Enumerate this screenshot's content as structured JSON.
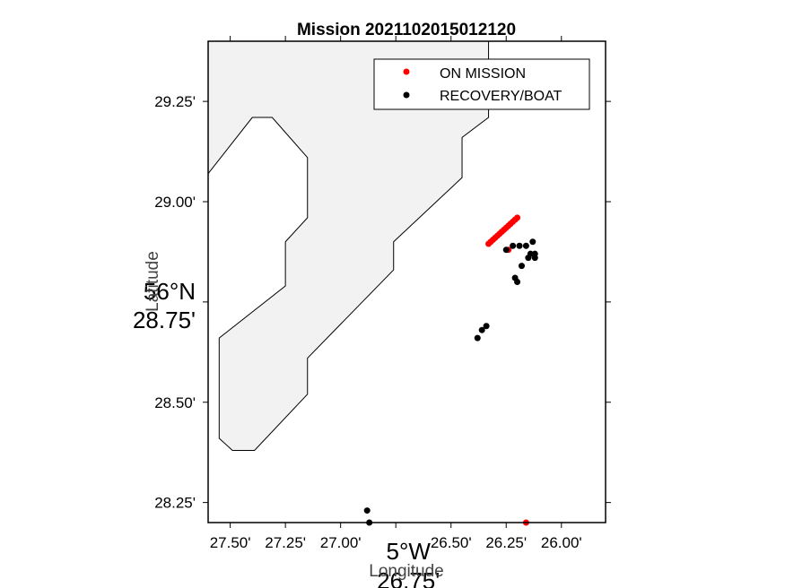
{
  "chart_data": {
    "type": "scatter",
    "title": "Mission 2021102015012120",
    "xlabel": "Longitude",
    "ylabel": "Latitude",
    "xlim": [
      -27.6,
      -25.8
    ],
    "ylim": [
      28.2,
      29.4
    ],
    "x_ticks": [
      {
        "value": -27.5,
        "label": "27.50'"
      },
      {
        "value": -27.25,
        "label": "27.25'"
      },
      {
        "value": -27.0,
        "label": "27.00'"
      },
      {
        "value": -26.5,
        "label": "26.50'"
      },
      {
        "value": -26.25,
        "label": "26.25'"
      },
      {
        "value": -26.0,
        "label": "26.00'"
      }
    ],
    "x_major_tick": {
      "value": -26.75,
      "label_top": "5°W",
      "label_bottom": "26.75'"
    },
    "y_ticks": [
      {
        "value": 29.25,
        "label": "29.25'"
      },
      {
        "value": 29.0,
        "label": "29.00'"
      },
      {
        "value": 28.5,
        "label": "28.50'"
      },
      {
        "value": 28.25,
        "label": "28.25'"
      }
    ],
    "y_major_tick": {
      "value": 28.75,
      "label_top": "56°N",
      "label_bottom": "28.75'"
    },
    "land_polygon": [
      [
        -27.6,
        29.07
      ],
      [
        -27.4,
        29.21
      ],
      [
        -27.31,
        29.21
      ],
      [
        -27.15,
        29.11
      ],
      [
        -27.15,
        28.96
      ],
      [
        -27.25,
        28.9
      ],
      [
        -27.25,
        28.79
      ],
      [
        -27.55,
        28.66
      ],
      [
        -27.55,
        28.41
      ],
      [
        -27.49,
        28.38
      ],
      [
        -27.39,
        28.38
      ],
      [
        -27.15,
        28.52
      ],
      [
        -27.15,
        28.61
      ],
      [
        -26.76,
        28.83
      ],
      [
        -26.76,
        28.9
      ],
      [
        -26.45,
        29.06
      ],
      [
        -26.45,
        29.16
      ],
      [
        -26.33,
        29.21
      ],
      [
        -26.33,
        29.4
      ],
      [
        -27.6,
        29.4
      ]
    ],
    "land_color": "#f2f2f2",
    "legend_position": "top-right",
    "series": [
      {
        "name": "ON MISSION",
        "color": "#ff0000",
        "points": [
          [
            -26.33,
            28.895
          ],
          [
            -26.32,
            28.9
          ],
          [
            -26.31,
            28.905
          ],
          [
            -26.3,
            28.91
          ],
          [
            -26.29,
            28.915
          ],
          [
            -26.28,
            28.92
          ],
          [
            -26.27,
            28.925
          ],
          [
            -26.26,
            28.93
          ],
          [
            -26.25,
            28.935
          ],
          [
            -26.24,
            28.94
          ],
          [
            -26.23,
            28.945
          ],
          [
            -26.22,
            28.95
          ],
          [
            -26.21,
            28.955
          ],
          [
            -26.2,
            28.96
          ],
          [
            -26.24,
            28.88
          ],
          [
            -26.16,
            28.2
          ]
        ]
      },
      {
        "name": "RECOVERY/BOAT",
        "color": "#000000",
        "points": [
          [
            -26.25,
            28.88
          ],
          [
            -26.22,
            28.89
          ],
          [
            -26.19,
            28.89
          ],
          [
            -26.16,
            28.89
          ],
          [
            -26.13,
            28.9
          ],
          [
            -26.14,
            28.87
          ],
          [
            -26.12,
            28.87
          ],
          [
            -26.15,
            28.86
          ],
          [
            -26.12,
            28.86
          ],
          [
            -26.18,
            28.84
          ],
          [
            -26.21,
            28.81
          ],
          [
            -26.2,
            28.8
          ],
          [
            -26.34,
            28.69
          ],
          [
            -26.36,
            28.68
          ],
          [
            -26.38,
            28.66
          ],
          [
            -26.88,
            28.23
          ],
          [
            -26.87,
            28.2
          ]
        ]
      }
    ]
  }
}
